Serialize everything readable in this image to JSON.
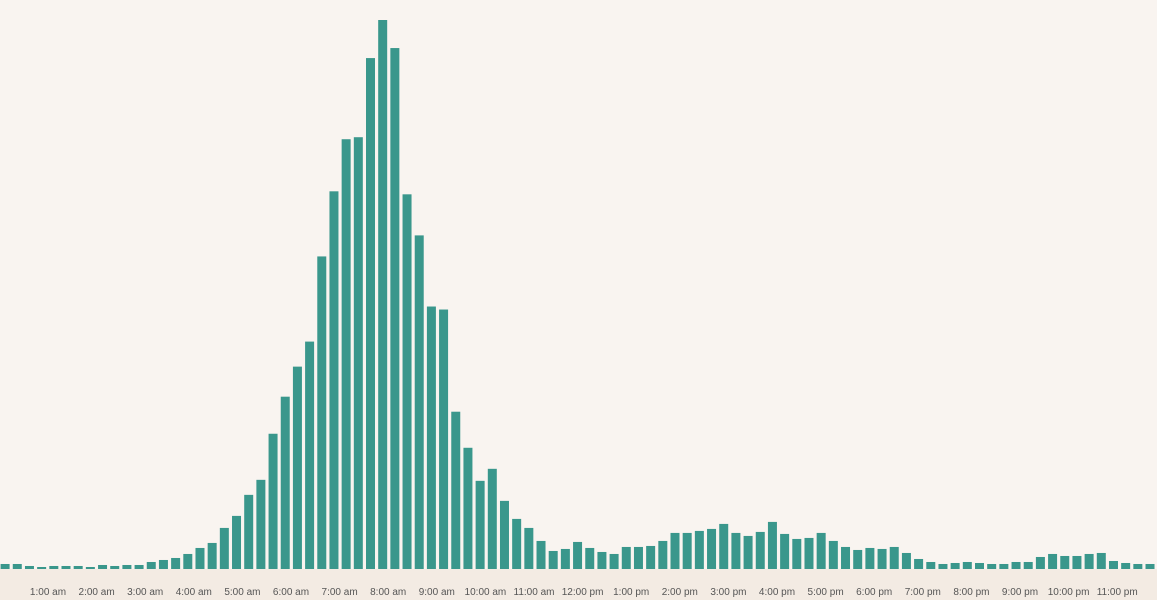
{
  "chart_data": {
    "type": "bar",
    "title": "",
    "xlabel": "",
    "ylabel": "",
    "ylim": [
      0,
      548
    ],
    "grid": false,
    "colors": {
      "bar": "#3a978c",
      "background": "#f9f4f0",
      "axis_band": "#f3ebe3",
      "tick_text": "#555555"
    },
    "x_tick_labels": [
      "1:00 am",
      "2:00 am",
      "3:00 am",
      "4:00 am",
      "5:00 am",
      "6:00 am",
      "7:00 am",
      "8:00 am",
      "9:00 am",
      "10:00 am",
      "11:00 am",
      "12:00 pm",
      "1:00 pm",
      "2:00 pm",
      "3:00 pm",
      "4:00 pm",
      "5:00 pm",
      "6:00 pm",
      "7:00 pm",
      "8:00 pm",
      "9:00 pm",
      "10:00 pm",
      "11:00 pm"
    ],
    "values": [
      5,
      5,
      3,
      2,
      3,
      3,
      3,
      2,
      4,
      3,
      4,
      4,
      7,
      9,
      11,
      15,
      21,
      26,
      41,
      53,
      74,
      89,
      135,
      172,
      202,
      227,
      312,
      377,
      429,
      431,
      510,
      548,
      520,
      374,
      333,
      262,
      259,
      157,
      121,
      88,
      100,
      68,
      50,
      41,
      28,
      18,
      20,
      27,
      21,
      17,
      15,
      22,
      22,
      23,
      28,
      36,
      36,
      38,
      40,
      45,
      36,
      33,
      37,
      47,
      35,
      30,
      31,
      36,
      28,
      22,
      19,
      21,
      20,
      22,
      16,
      10,
      7,
      5,
      6,
      7,
      6,
      5,
      5,
      7,
      7,
      12,
      15,
      13,
      13,
      15,
      16,
      8,
      6,
      5,
      5
    ]
  }
}
